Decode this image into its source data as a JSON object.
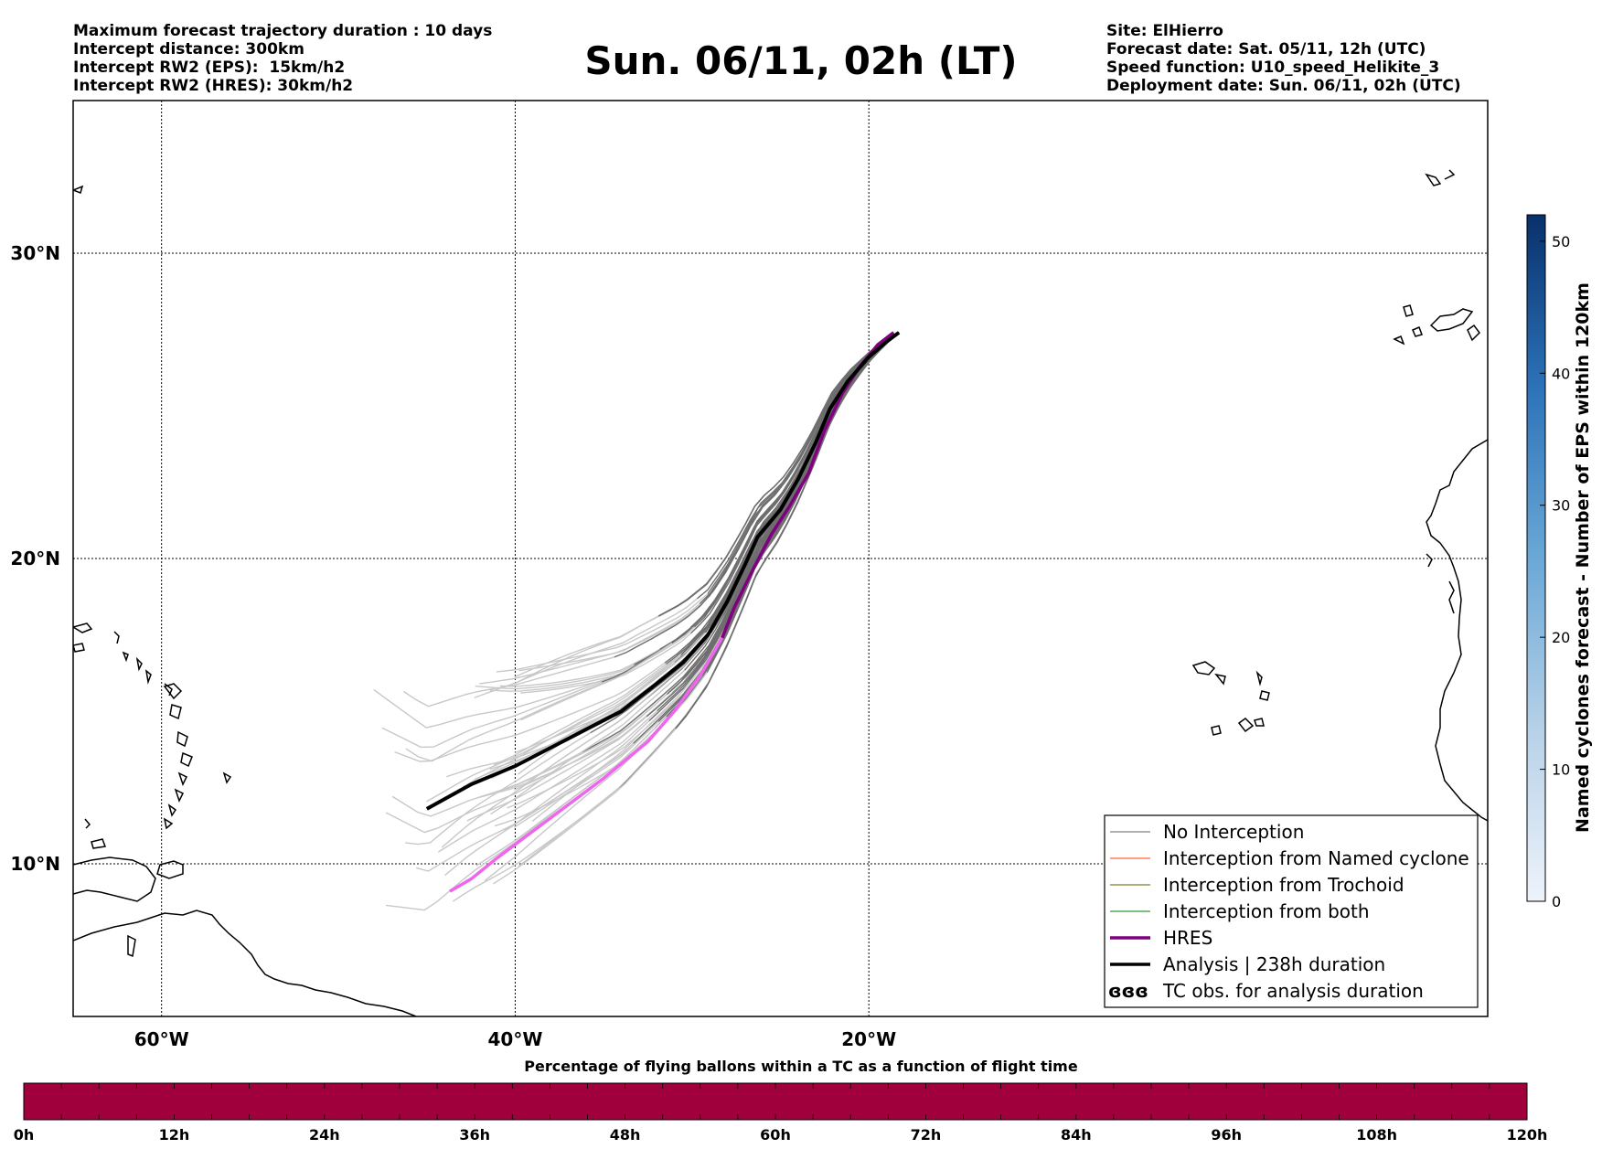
{
  "header_left": [
    "Maximum forecast trajectory duration : 10 days",
    "Intercept distance: 300km",
    "Intercept RW2 (EPS):  15km/h2",
    "Intercept RW2 (HRES): 30km/h2"
  ],
  "title": "Sun. 06/11, 02h (LT)",
  "header_right": [
    "Site: ElHierro",
    "Forecast date: Sat. 05/11, 12h (UTC)",
    "Speed function: U10_speed_Helikite_3",
    "Deployment date: Sun. 06/11, 02h (UTC)"
  ],
  "map": {
    "lon_range": [
      -65,
      15
    ],
    "lat_range": [
      5,
      35
    ],
    "lon_ticks": [
      {
        "value": -60,
        "label": "60°W"
      },
      {
        "value": -40,
        "label": "40°W"
      },
      {
        "value": -20,
        "label": "20°W"
      }
    ],
    "lat_ticks": [
      {
        "value": 10,
        "label": "10°N"
      },
      {
        "value": 20,
        "label": "20°N"
      },
      {
        "value": 30,
        "label": "30°N"
      }
    ],
    "grid": true
  },
  "legend": {
    "placement": "bottom-right",
    "items": [
      {
        "label": "No Interception",
        "color": "#808080"
      },
      {
        "label": "Interception from Named cyclone",
        "color": "#ff6633"
      },
      {
        "label": "Interception from Trochoid",
        "color": "#808033"
      },
      {
        "label": "Interception from both",
        "color": "#339933"
      },
      {
        "label": "HRES",
        "color": "#800080"
      },
      {
        "label": "Analysis | 238h duration",
        "color": "#000000"
      },
      {
        "label": "TC obs. for analysis duration",
        "color": "#000000",
        "icon": "cyclone-symbol-icon"
      }
    ]
  },
  "colorbar": {
    "label": "Named cyclones forecast - Number of EPS within 120km",
    "min": 0,
    "max": 52,
    "ticks": [
      "0",
      "10",
      "20",
      "30",
      "40",
      "50"
    ],
    "color_low": "#e8eff8",
    "color_high": "#08306b"
  },
  "timeline": {
    "title": "Percentage of flying ballons within a TC as a function of flight time",
    "ticks": [
      "0h",
      "12h",
      "24h",
      "36h",
      "48h",
      "60h",
      "72h",
      "84h",
      "96h",
      "108h",
      "120h"
    ],
    "bar_color": "#a0003c"
  },
  "chart_data": {
    "type": "line",
    "x_label": "longitude",
    "y_label": "latitude",
    "series": [
      {
        "name": "Analysis | 238h duration",
        "color": "#000000",
        "points": [
          [
            -18.3,
            27.4
          ],
          [
            -19.0,
            27.1
          ],
          [
            -20.0,
            26.6
          ],
          [
            -21.2,
            25.8
          ],
          [
            -22.2,
            24.9
          ],
          [
            -23.0,
            23.8
          ],
          [
            -24.0,
            22.6
          ],
          [
            -25.0,
            21.6
          ],
          [
            -26.3,
            20.7
          ],
          [
            -27.0,
            19.8
          ],
          [
            -28.0,
            18.6
          ],
          [
            -29.1,
            17.5
          ],
          [
            -30.5,
            16.6
          ],
          [
            -32.0,
            15.9
          ],
          [
            -34.0,
            15.0
          ],
          [
            -37.0,
            14.1
          ],
          [
            -40.0,
            13.2
          ],
          [
            -42.5,
            12.6
          ],
          [
            -45.0,
            11.8
          ]
        ]
      },
      {
        "name": "HRES",
        "color": "#800080",
        "color_early": "#ee66ee",
        "points": [
          [
            -18.6,
            27.4
          ],
          [
            -19.5,
            27.0
          ],
          [
            -20.5,
            26.3
          ],
          [
            -21.5,
            25.4
          ],
          [
            -22.5,
            24.2
          ],
          [
            -23.4,
            22.8
          ],
          [
            -24.5,
            21.7
          ],
          [
            -25.5,
            20.8
          ],
          [
            -26.5,
            19.7
          ],
          [
            -27.6,
            18.4
          ],
          [
            -28.3,
            17.4
          ],
          [
            -29.5,
            16.2
          ],
          [
            -31.0,
            15.0
          ],
          [
            -32.5,
            14.0
          ],
          [
            -35.0,
            12.8
          ],
          [
            -38.0,
            11.5
          ],
          [
            -41.0,
            10.2
          ],
          [
            -42.5,
            9.5
          ],
          [
            -43.7,
            9.1
          ]
        ]
      }
    ]
  }
}
